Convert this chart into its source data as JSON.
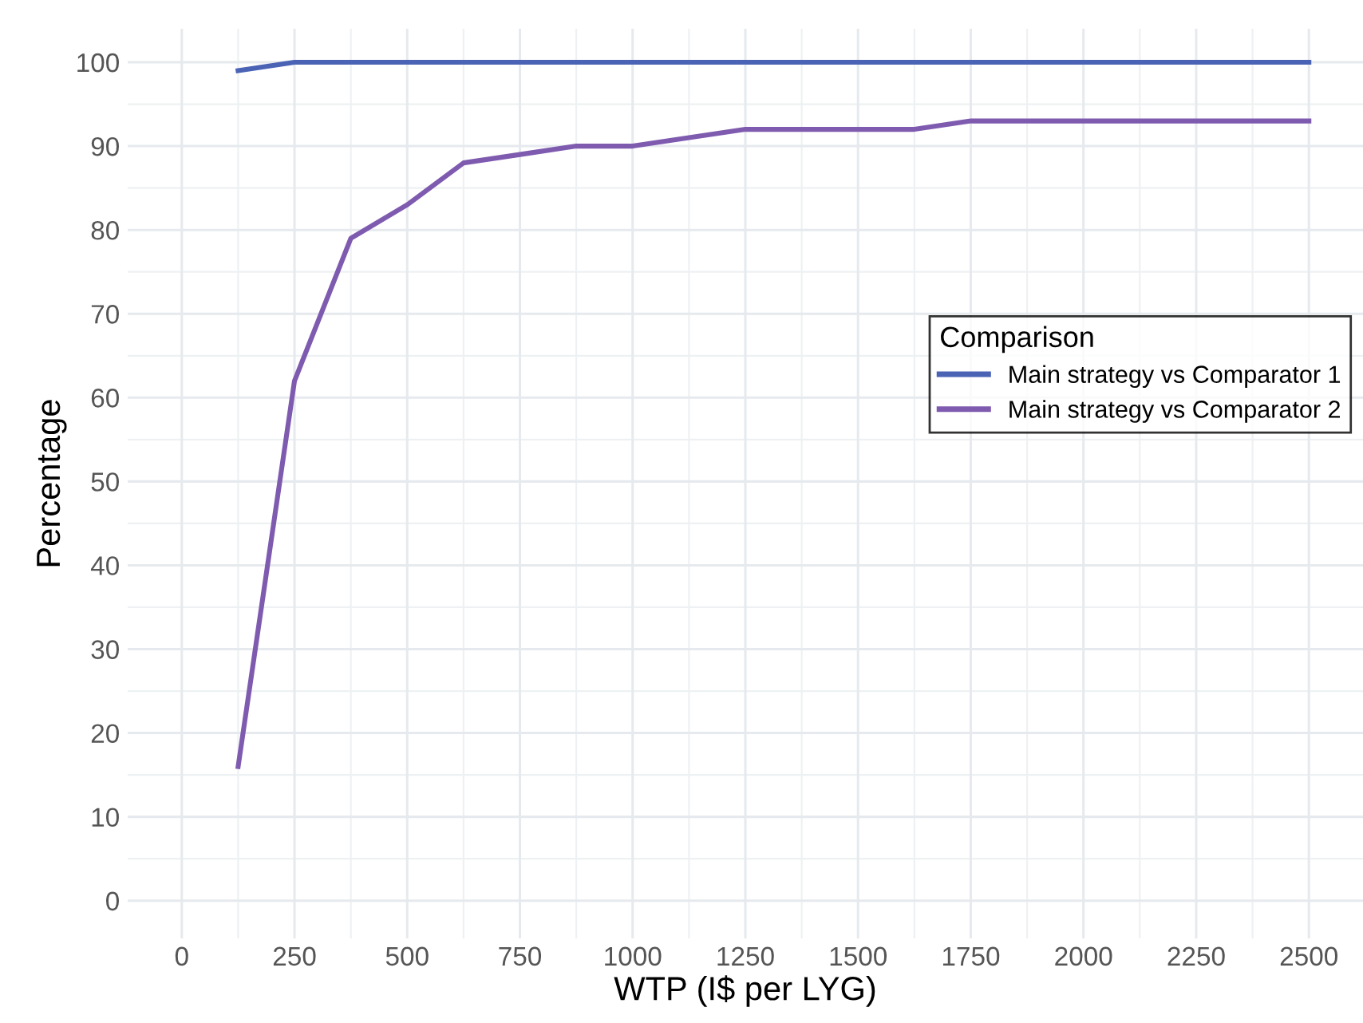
{
  "chart_data": {
    "type": "line",
    "xlabel": "WTP (I$ per LYG)",
    "ylabel": "Percentage",
    "legend_title": "Comparison",
    "legend": "right",
    "x": [
      125,
      250,
      375,
      500,
      625,
      750,
      875,
      1000,
      1125,
      1250,
      1375,
      1500,
      1625,
      1750,
      1875,
      2000,
      2125,
      2250,
      2375,
      2500
    ],
    "series": [
      {
        "name": "Main strategy vs Comparator 1",
        "color": "#4a63b5",
        "values": [
          99,
          100,
          100,
          100,
          100,
          100,
          100,
          100,
          100,
          100,
          100,
          100,
          100,
          100,
          100,
          100,
          100,
          100,
          100,
          100
        ]
      },
      {
        "name": "Main strategy vs Comparator 2",
        "color": "#7f5bb0",
        "values": [
          16,
          62,
          79,
          83,
          88,
          89,
          90,
          90,
          91,
          92,
          92,
          92,
          92,
          93,
          93,
          93,
          93,
          93,
          93,
          93
        ]
      }
    ],
    "xlim": [
      -120,
      2620
    ],
    "ylim": [
      -4.5,
      104
    ],
    "xticks": [
      0,
      250,
      500,
      750,
      1000,
      1250,
      1500,
      1750,
      2000,
      2250,
      2500
    ],
    "yticks": [
      0,
      10,
      20,
      30,
      40,
      50,
      60,
      70,
      80,
      90,
      100
    ],
    "grid": true,
    "marker": "none",
    "line_style": "solid"
  }
}
